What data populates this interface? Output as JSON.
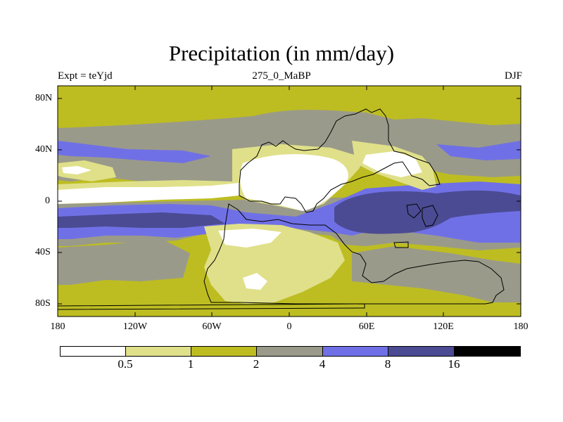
{
  "title": "Precipitation (in mm/day)",
  "subtitle_left": "Expt = teYjd",
  "subtitle_center": "275_0_MaBP",
  "subtitle_right": "DJF",
  "lat_labels": [
    "80N",
    "40N",
    "0",
    "40S",
    "80S"
  ],
  "lon_labels": [
    "180",
    "120W",
    "60W",
    "0",
    "60E",
    "120E",
    "180"
  ],
  "colorbar": {
    "colors": [
      "#ffffff",
      "#e0e08a",
      "#bdbd22",
      "#9a9a8a",
      "#7070e6",
      "#4b4b94",
      "#000000"
    ],
    "labels": [
      "0.5",
      "1",
      "2",
      "4",
      "8",
      "16"
    ]
  }
}
